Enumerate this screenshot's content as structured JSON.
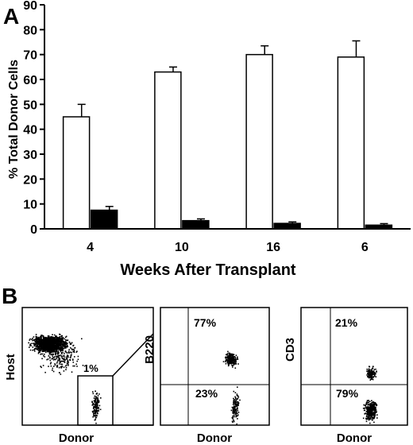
{
  "panel_a": {
    "letter": "A",
    "chart_data": {
      "type": "bar",
      "categories": [
        "4",
        "10",
        "16",
        "6"
      ],
      "series": [
        {
          "values": [
            45,
            63,
            70,
            69
          ],
          "errors": [
            5,
            2,
            3.5,
            6.5
          ],
          "fill": "#ffffff"
        },
        {
          "values": [
            7.5,
            3.3,
            2.2,
            1.5
          ],
          "errors": [
            1.5,
            0.7,
            0.6,
            0.6
          ],
          "fill": "#000000"
        }
      ],
      "ylim": [
        0,
        90
      ],
      "yticks": [
        "0",
        "10",
        "20",
        "30",
        "40",
        "50",
        "60",
        "70",
        "80",
        "90"
      ],
      "ylabel": "% Total Donor Cells",
      "xlabel": "Weeks After Transplant"
    }
  },
  "panel_b": {
    "letter": "B",
    "plot1": {
      "ylabel": "Host",
      "xlabel": "Donor",
      "gate_label": "1%"
    },
    "plot2": {
      "ylabel": "B220",
      "xlabel": "Donor",
      "upper_pct": "77%",
      "lower_pct": "23%"
    },
    "plot3": {
      "ylabel": "CD3",
      "xlabel": "Donor",
      "upper_pct": "21%",
      "lower_pct": "79%"
    }
  }
}
